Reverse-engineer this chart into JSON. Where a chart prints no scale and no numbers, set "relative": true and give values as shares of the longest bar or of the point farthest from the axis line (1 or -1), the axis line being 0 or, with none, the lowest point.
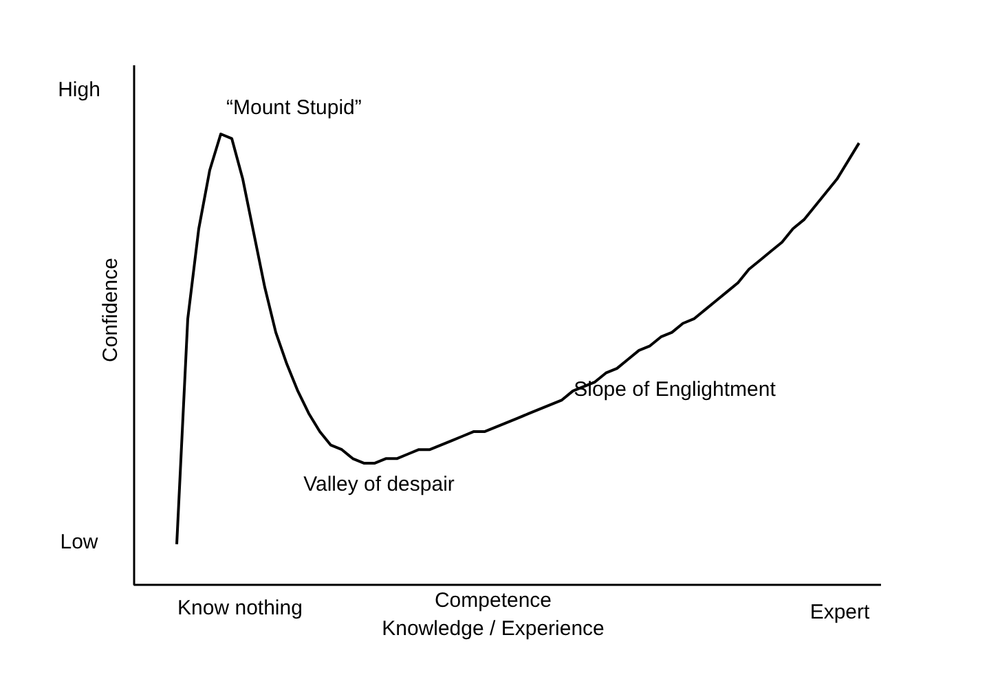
{
  "chart_data": {
    "type": "line",
    "relative": true,
    "xlabel": "Competence\nKnowledge / Experience",
    "ylabel": "Confidence",
    "categories": [
      null,
      null,
      null,
      null,
      null,
      null,
      null,
      null,
      null,
      null,
      null,
      null,
      null,
      null,
      null,
      null,
      null,
      null,
      null,
      null,
      null,
      null,
      null,
      null,
      null,
      null,
      null,
      null,
      null,
      null,
      null,
      null,
      null,
      null,
      null,
      null,
      null,
      null,
      null,
      null,
      null,
      null,
      null,
      null,
      null,
      null,
      null,
      null,
      null,
      null,
      null,
      null,
      null,
      null,
      null,
      null,
      null,
      null,
      null,
      null,
      null,
      null,
      null
    ],
    "series": [
      {
        "color": "#000000",
        "values": [
          0.09,
          0.59,
          0.79,
          0.92,
          1.0,
          0.99,
          0.9,
          0.78,
          0.66,
          0.56,
          0.49,
          0.43,
          0.38,
          0.34,
          0.31,
          0.3,
          0.28,
          0.27,
          0.27,
          0.28,
          0.28,
          0.29,
          0.3,
          0.3,
          0.31,
          0.32,
          0.33,
          0.34,
          0.34,
          0.35,
          0.36,
          0.37,
          0.38,
          0.39,
          0.4,
          0.41,
          0.43,
          0.44,
          0.45,
          0.47,
          0.48,
          0.5,
          0.52,
          0.53,
          0.55,
          0.56,
          0.58,
          0.59,
          0.61,
          0.63,
          0.65,
          0.67,
          0.7,
          0.72,
          0.74,
          0.76,
          0.79,
          0.81,
          0.84,
          0.87,
          0.9,
          0.94,
          0.98
        ]
      }
    ],
    "annotations": [
      "High",
      "Low",
      "Know nothing",
      "Expert",
      "“Mount Stupid”",
      "Valley of despair",
      "Slope of Englightment"
    ]
  }
}
